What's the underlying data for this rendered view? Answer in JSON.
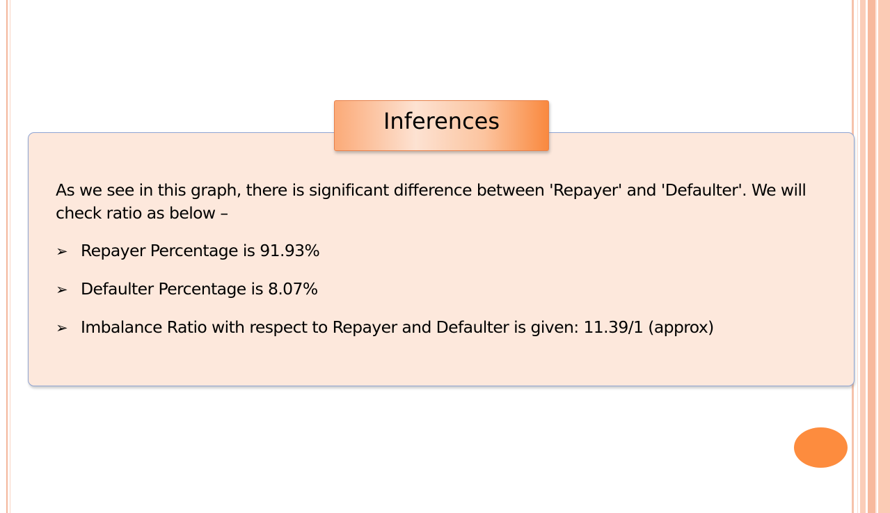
{
  "slide": {
    "title": "Inferences",
    "intro": "As we see in this graph, there is significant difference between 'Repayer' and 'Defaulter'. We will check ratio as below –",
    "bullet_glyph": "➢",
    "bullets": [
      "Repayer Percentage is 91.93%",
      "Defaulter Percentage is 8.07%",
      "Imbalance Ratio with respect to Repayer and Defaulter is given: 11.39/1 (approx)"
    ]
  },
  "colors": {
    "accent": "#fd8c3e",
    "box_fill": "#fde8dc",
    "box_border": "#8ea4d2"
  }
}
